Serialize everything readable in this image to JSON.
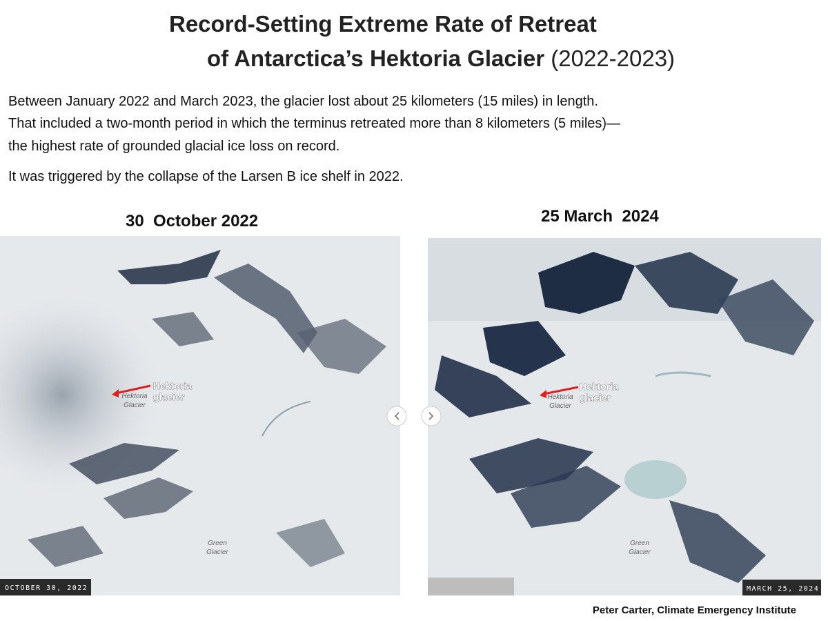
{
  "header": {
    "title_line1": "Record-Setting Extreme Rate of Retreat",
    "title_line2": "of Antarctica’s Hektoria Glacier",
    "title_years": "(2022-2023)"
  },
  "body": {
    "paragraph1": [
      "Between January 2022 and March 2023, the glacier lost about 25 kilometers (15 miles) in length.",
      "That included a two-month period in which the terminus retreated more than 8 kilometers (5 miles)—",
      "the highest rate of grounded glacial ice loss on record."
    ],
    "paragraph2": "It was triggered by the collapse of the Larsen B ice shelf in 2022."
  },
  "images": [
    {
      "heading": "30  October 2022",
      "date_stamp": "OCTOBER 30, 2022",
      "annotation": [
        "Hektoria",
        "glacier"
      ],
      "map_labels": [
        [
          "Hektoria",
          "Glacier"
        ],
        [
          "Green",
          "Glacier"
        ]
      ]
    },
    {
      "heading": "25 March  2024",
      "date_stamp": "MARCH 25, 2024",
      "annotation": [
        "Hektoria",
        "glacier"
      ],
      "map_labels": [
        [
          "Hektoria",
          "Glacier"
        ],
        [
          "Green",
          "Glacier"
        ]
      ]
    }
  ],
  "credit": "Peter Carter, Climate Emergency Institute"
}
